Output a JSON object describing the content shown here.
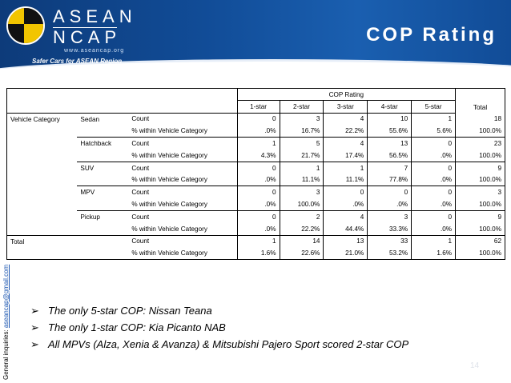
{
  "header": {
    "logo_top": "ASEAN",
    "logo_bottom": "NCAP",
    "logo_url": "www.aseancap.org",
    "tagline": "Safer Cars for ASEAN Region",
    "title": "COP Rating"
  },
  "side": {
    "prefix": "General inquiries:",
    "email": "aseancap@gmail.com"
  },
  "table": {
    "group_header": "COP Rating",
    "columns": [
      "1-star",
      "2-star",
      "3-star",
      "4-star",
      "5-star",
      "Total"
    ],
    "row_header": "Vehicle Category",
    "categories": [
      {
        "name": "Sedan",
        "count": [
          "0",
          "3",
          "4",
          "10",
          "1",
          "18"
        ],
        "pct": [
          ".0%",
          "16.7%",
          "22.2%",
          "55.6%",
          "5.6%",
          "100.0%"
        ]
      },
      {
        "name": "Hatchback",
        "count": [
          "1",
          "5",
          "4",
          "13",
          "0",
          "23"
        ],
        "pct": [
          "4.3%",
          "21.7%",
          "17.4%",
          "56.5%",
          ".0%",
          "100.0%"
        ]
      },
      {
        "name": "SUV",
        "count": [
          "0",
          "1",
          "1",
          "7",
          "0",
          "9"
        ],
        "pct": [
          ".0%",
          "11.1%",
          "11.1%",
          "77.8%",
          ".0%",
          "100.0%"
        ]
      },
      {
        "name": "MPV",
        "count": [
          "0",
          "3",
          "0",
          "0",
          "0",
          "3"
        ],
        "pct": [
          ".0%",
          "100.0%",
          ".0%",
          ".0%",
          ".0%",
          "100.0%"
        ]
      },
      {
        "name": "Pickup",
        "count": [
          "0",
          "2",
          "4",
          "3",
          "0",
          "9"
        ],
        "pct": [
          ".0%",
          "22.2%",
          "44.4%",
          "33.3%",
          ".0%",
          "100.0%"
        ]
      }
    ],
    "total": {
      "label": "Total",
      "count": [
        "1",
        "14",
        "13",
        "33",
        "1",
        "62"
      ],
      "pct": [
        "1.6%",
        "22.6%",
        "21.0%",
        "53.2%",
        "1.6%",
        "100.0%"
      ]
    },
    "count_label": "Count",
    "pct_label": "% within Vehicle Category"
  },
  "bullets": [
    "The only 5-star COP: Nissan Teana",
    "The only 1-star COP: Kia Picanto NAB",
    "All MPVs (Alza, Xenia & Avanza) & Mitsubishi Pajero Sport scored 2-star COP"
  ],
  "page_number": "14",
  "colors": {
    "header_blue": "#114c97",
    "logo_yellow": "#f2c500"
  }
}
